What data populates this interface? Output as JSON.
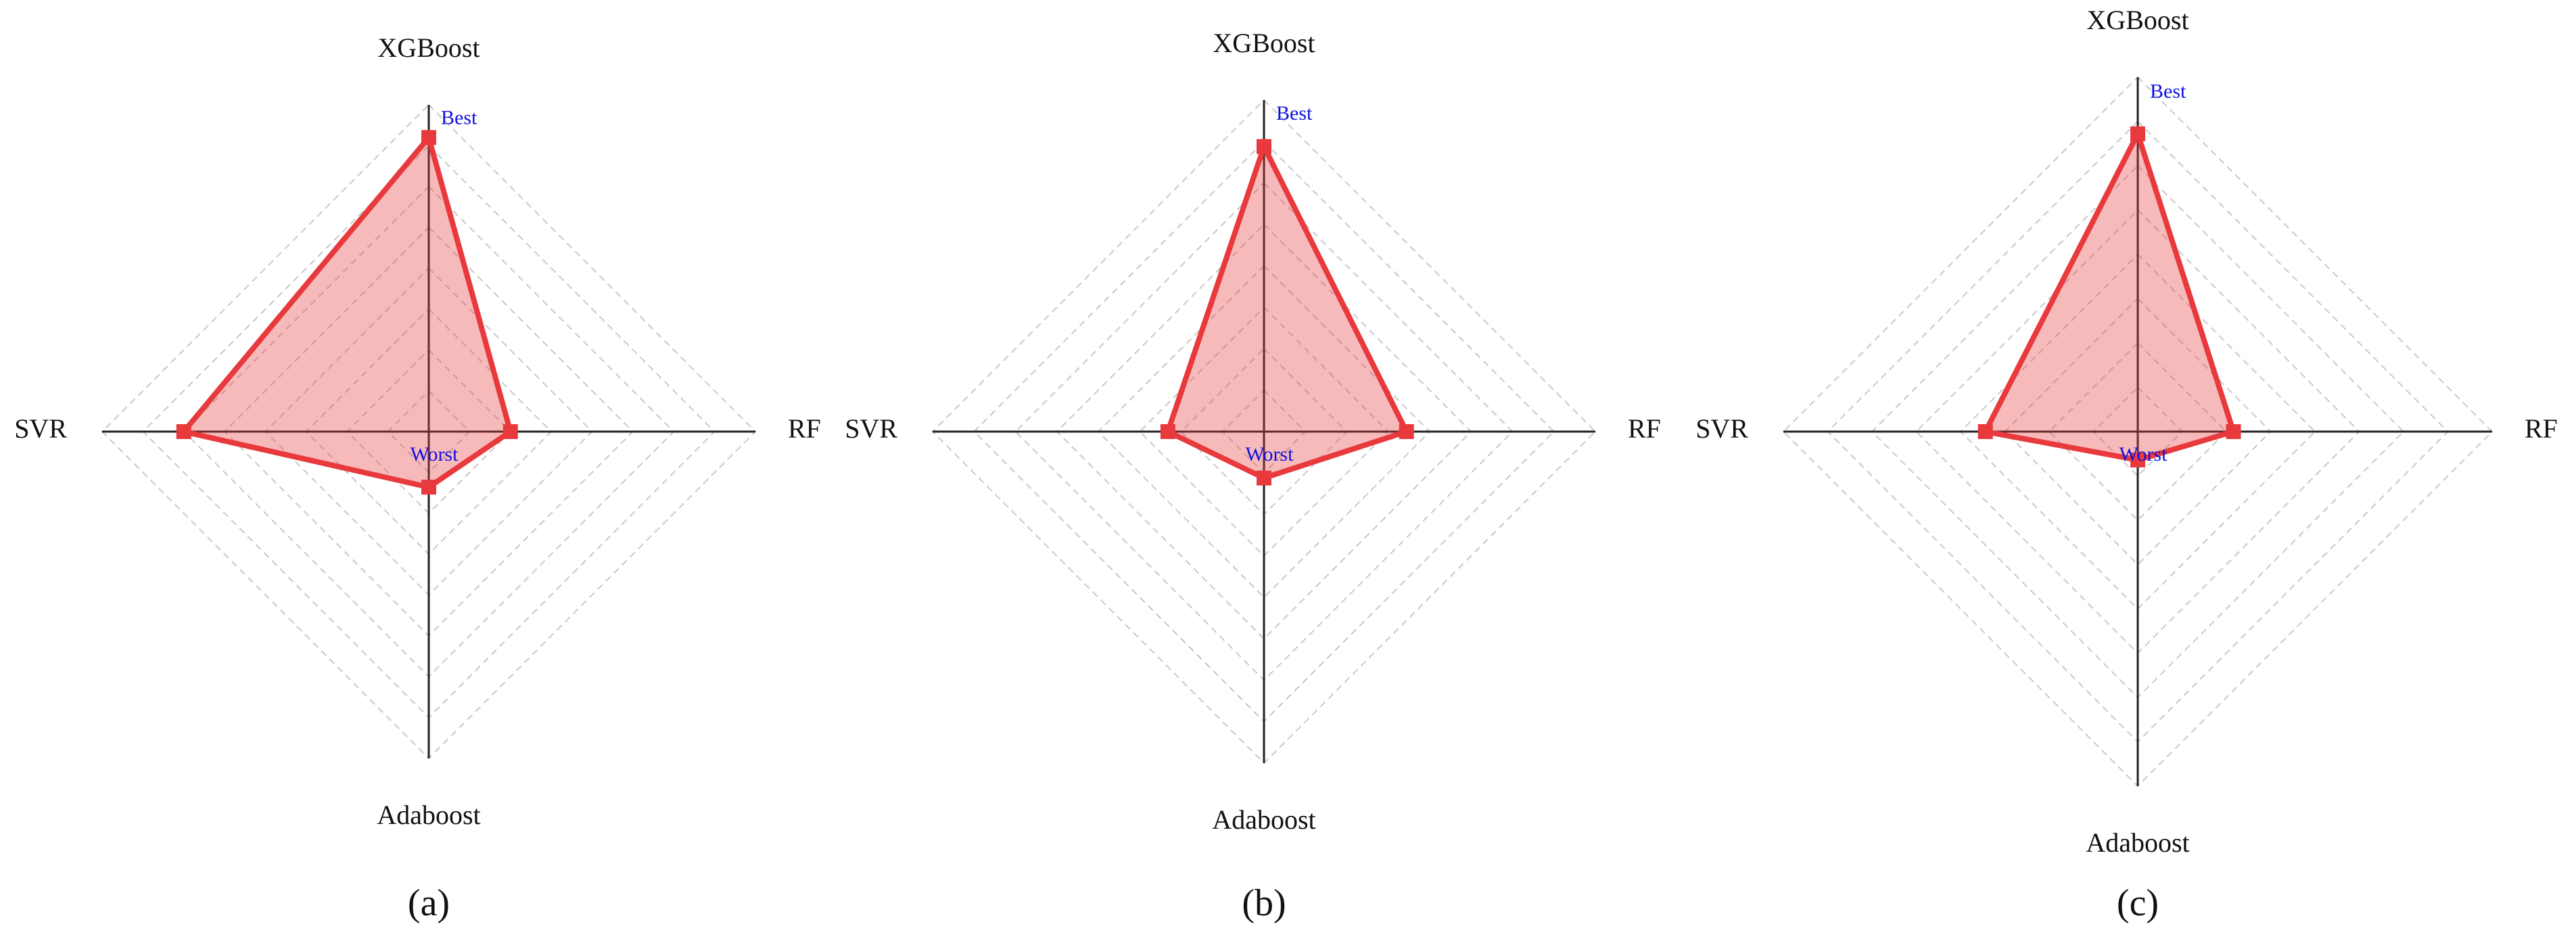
{
  "chart_data": [
    {
      "type": "radar",
      "panel_label": "(a)",
      "categories": [
        "XGBoost",
        "RF",
        "Adaboost",
        "SVR"
      ],
      "values": [
        0.9,
        0.25,
        0.17,
        0.75
      ],
      "color": "#e8393d",
      "ylim": [
        0,
        1
      ],
      "yticks": [
        0.125,
        0.25,
        0.375,
        0.5,
        0.625,
        0.75,
        0.875,
        1
      ],
      "grid": true,
      "annotations": {
        "best": "Best",
        "worst": "Worst"
      }
    },
    {
      "type": "radar",
      "panel_label": "(b)",
      "categories": [
        "XGBoost",
        "RF",
        "Adaboost",
        "SVR"
      ],
      "values": [
        0.86,
        0.43,
        0.14,
        0.29
      ],
      "color": "#e8393d",
      "ylim": [
        0,
        1
      ],
      "yticks": [
        0.125,
        0.25,
        0.375,
        0.5,
        0.625,
        0.75,
        0.875,
        1
      ],
      "grid": true,
      "annotations": {
        "best": "Best",
        "worst": "Worst"
      }
    },
    {
      "type": "radar",
      "panel_label": "(c)",
      "categories": [
        "XGBoost",
        "RF",
        "Adaboost",
        "SVR"
      ],
      "values": [
        0.84,
        0.27,
        0.08,
        0.43
      ],
      "color": "#e8393d",
      "ylim": [
        0,
        1
      ],
      "yticks": [
        0.125,
        0.25,
        0.375,
        0.5,
        0.625,
        0.75,
        0.875,
        1
      ],
      "grid": true,
      "annotations": {
        "best": "Best",
        "worst": "Worst"
      }
    }
  ]
}
